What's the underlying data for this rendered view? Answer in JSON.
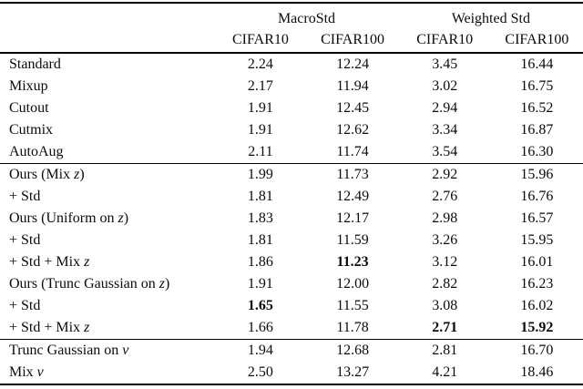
{
  "table": {
    "groups": [
      "MacroStd",
      "Weighted Std"
    ],
    "columns": [
      "CIFAR10",
      "CIFAR100",
      "CIFAR10",
      "CIFAR100"
    ],
    "text_color": "#0b0b0b",
    "background": "#ffffff",
    "sections": [
      {
        "rows": [
          {
            "pre": "Standard",
            "math": "",
            "post": "",
            "values": [
              "2.24",
              "12.24",
              "3.45",
              "16.44"
            ],
            "bold": []
          },
          {
            "pre": "Mixup",
            "math": "",
            "post": "",
            "values": [
              "2.17",
              "11.94",
              "3.02",
              "16.75"
            ],
            "bold": []
          },
          {
            "pre": "Cutout",
            "math": "",
            "post": "",
            "values": [
              "1.91",
              "12.45",
              "2.94",
              "16.52"
            ],
            "bold": []
          },
          {
            "pre": "Cutmix",
            "math": "",
            "post": "",
            "values": [
              "1.91",
              "12.62",
              "3.34",
              "16.87"
            ],
            "bold": []
          },
          {
            "pre": "AutoAug",
            "math": "",
            "post": "",
            "values": [
              "2.11",
              "11.74",
              "3.54",
              "16.30"
            ],
            "bold": []
          }
        ]
      },
      {
        "rows": [
          {
            "pre": "Ours (Mix ",
            "math": "z",
            "post": ")",
            "values": [
              "1.99",
              "11.73",
              "2.92",
              "15.96"
            ],
            "bold": []
          },
          {
            "pre": "+ Std",
            "math": "",
            "post": "",
            "values": [
              "1.81",
              "12.49",
              "2.76",
              "16.76"
            ],
            "bold": []
          },
          {
            "pre": "Ours (Uniform on ",
            "math": "z",
            "post": ")",
            "values": [
              "1.83",
              "12.17",
              "2.98",
              "16.57"
            ],
            "bold": []
          },
          {
            "pre": "+ Std",
            "math": "",
            "post": "",
            "values": [
              "1.81",
              "11.59",
              "3.26",
              "15.95"
            ],
            "bold": []
          },
          {
            "pre": "+ Std + Mix ",
            "math": "z",
            "post": "",
            "values": [
              "1.86",
              "11.23",
              "3.12",
              "16.01"
            ],
            "bold": [
              1
            ]
          },
          {
            "pre": "Ours (Trunc Gaussian on ",
            "math": "z",
            "post": ")",
            "values": [
              "1.91",
              "12.00",
              "2.82",
              "16.23"
            ],
            "bold": []
          },
          {
            "pre": "+ Std",
            "math": "",
            "post": "",
            "values": [
              "1.65",
              "11.55",
              "3.08",
              "16.02"
            ],
            "bold": [
              0
            ]
          },
          {
            "pre": "+ Std + Mix ",
            "math": "z",
            "post": "",
            "values": [
              "1.66",
              "11.78",
              "2.71",
              "15.92"
            ],
            "bold": [
              2,
              3
            ]
          }
        ]
      },
      {
        "rows": [
          {
            "pre": "Trunc Gaussian on ",
            "math": "ν",
            "post": "",
            "values": [
              "1.94",
              "12.68",
              "2.81",
              "16.70"
            ],
            "bold": []
          },
          {
            "pre": "Mix ",
            "math": "ν",
            "post": "",
            "values": [
              "2.50",
              "13.27",
              "4.21",
              "18.46"
            ],
            "bold": []
          }
        ]
      }
    ]
  }
}
